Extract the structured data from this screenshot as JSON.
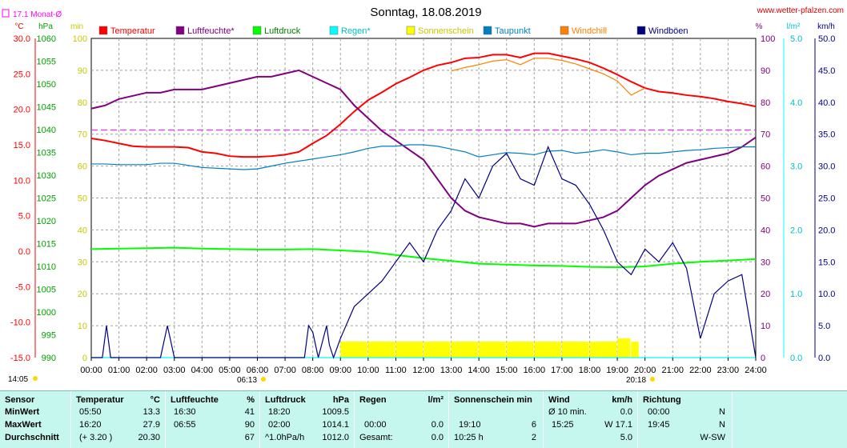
{
  "header": {
    "title": "Sonntag, 18.08.2019",
    "site": "www.wetter-pfalzen.com",
    "monthly_avg_label": "17.1 Monat-Ø"
  },
  "colors": {
    "temperature": "#ff0000",
    "humidity": "#800080",
    "pressure": "#00ff00",
    "rain": "#00ffff",
    "sunshine": "#ffff00",
    "dewpoint": "#0080c0",
    "windchill": "#ff8000",
    "windgust": "#000080",
    "monthly_avg": "#ff00ff"
  },
  "chart_data": {
    "type": "line",
    "x_ticks": [
      "00:00",
      "01:00",
      "02:00",
      "03:00",
      "04:00",
      "05:00",
      "06:00",
      "07:00",
      "08:00",
      "09:00",
      "10:00",
      "11:00",
      "12:00",
      "13:00",
      "14:00",
      "15:00",
      "16:00",
      "17:00",
      "18:00",
      "19:00",
      "20:00",
      "21:00",
      "22:00",
      "23:00",
      "24:00"
    ],
    "x_hours": [
      0,
      24
    ],
    "axes": {
      "temperature": {
        "unit": "°C",
        "range": [
          -15,
          30
        ],
        "ticks": [
          "30.0",
          "25.0",
          "20.0",
          "15.0",
          "10.0",
          "5.0",
          "0.0",
          "-5.0",
          "-10.0",
          "-15.0"
        ]
      },
      "pressure": {
        "unit": "hPa",
        "range": [
          990,
          1060
        ],
        "ticks": [
          "1060",
          "1055",
          "1050",
          "1045",
          "1040",
          "1035",
          "1030",
          "1025",
          "1020",
          "1015",
          "1010",
          "1005",
          "1000",
          "995",
          "990"
        ]
      },
      "sunshine_min": {
        "unit": "min",
        "range": [
          0,
          100
        ],
        "ticks": [
          "100",
          "90",
          "80",
          "70",
          "60",
          "50",
          "40",
          "30",
          "20",
          "10",
          "0"
        ]
      },
      "humidity": {
        "unit": "%",
        "range": [
          0,
          100
        ],
        "ticks": [
          "100",
          "90",
          "80",
          "70",
          "60",
          "50",
          "40",
          "30",
          "20",
          "10",
          "0"
        ]
      },
      "rain": {
        "unit": "l/m²",
        "range": [
          0,
          5
        ],
        "ticks": [
          "5.0",
          "4.0",
          "3.0",
          "2.0",
          "1.0",
          "0.0"
        ]
      },
      "wind": {
        "unit": "km/h",
        "range": [
          0,
          50
        ],
        "ticks": [
          "50.0",
          "45.0",
          "40.0",
          "35.0",
          "30.0",
          "25.0",
          "20.0",
          "15.0",
          "10.0",
          "5.0",
          "0.0"
        ]
      }
    },
    "monthly_avg_temp": 17.1,
    "sunrise": "06:13",
    "sunset": "20:18",
    "left_time": "14:05",
    "grid": true,
    "legend_position": "top",
    "series": [
      {
        "name": "Temperatur",
        "axis": "temperature",
        "color": "#ff0000",
        "x": [
          0,
          0.5,
          1,
          1.5,
          2,
          2.5,
          3,
          3.5,
          4,
          4.5,
          5,
          5.5,
          6,
          6.5,
          7,
          7.5,
          8,
          8.5,
          9,
          9.5,
          10,
          10.5,
          11,
          11.5,
          12,
          12.5,
          13,
          13.5,
          14,
          14.5,
          15,
          15.5,
          16,
          16.5,
          17,
          17.5,
          18,
          18.5,
          19,
          19.5,
          20,
          20.5,
          21,
          21.5,
          22,
          22.5,
          23,
          23.5,
          24
        ],
        "y": [
          15.9,
          15.6,
          15.2,
          14.8,
          14.7,
          14.7,
          14.7,
          14.6,
          14.0,
          13.8,
          13.4,
          13.3,
          13.3,
          13.4,
          13.6,
          14.0,
          15.2,
          16.3,
          17.9,
          19.7,
          21.3,
          22.4,
          23.6,
          24.5,
          25.5,
          26.2,
          26.6,
          27.2,
          27.3,
          27.7,
          27.7,
          27.3,
          27.9,
          27.9,
          27.5,
          27.1,
          26.6,
          25.8,
          24.9,
          23.9,
          23.0,
          22.5,
          22.3,
          22.0,
          21.8,
          21.5,
          21.1,
          20.8,
          20.4
        ]
      },
      {
        "name": "Luftfeuchte*",
        "axis": "humidity",
        "color": "#800080",
        "x": [
          0,
          0.5,
          1,
          1.5,
          2,
          2.5,
          3,
          3.5,
          4,
          4.5,
          5,
          5.5,
          6,
          6.5,
          7,
          7.5,
          8,
          8.5,
          9,
          9.5,
          10,
          10.5,
          11,
          11.5,
          12,
          12.5,
          13,
          13.5,
          14,
          14.5,
          15,
          15.5,
          16,
          16.5,
          17,
          17.5,
          18,
          18.5,
          19,
          19.5,
          20,
          20.5,
          21,
          21.5,
          22,
          22.5,
          23,
          23.5,
          24
        ],
        "y": [
          78,
          79,
          81,
          82,
          83,
          83,
          84,
          84,
          84,
          85,
          86,
          87,
          88,
          88,
          89,
          90,
          88,
          86,
          84,
          79,
          75,
          71,
          68,
          65,
          62,
          56,
          50,
          46,
          44,
          43,
          42,
          42,
          41,
          42,
          42,
          42,
          43,
          44,
          46,
          50,
          54,
          57,
          59,
          61,
          62,
          63,
          64,
          66,
          69
        ]
      },
      {
        "name": "Luftdruck",
        "axis": "pressure",
        "color": "#00ff00",
        "x": [
          0,
          1,
          2,
          3,
          4,
          5,
          6,
          7,
          8,
          9,
          10,
          11,
          12,
          13,
          14,
          15,
          16,
          17,
          18,
          19,
          20,
          21,
          22,
          23,
          24
        ],
        "y": [
          1013.8,
          1013.9,
          1014.0,
          1014.1,
          1013.9,
          1013.8,
          1013.7,
          1013.7,
          1013.8,
          1013.5,
          1013.2,
          1012.5,
          1011.8,
          1011.2,
          1010.6,
          1010.4,
          1010.2,
          1010.1,
          1009.9,
          1009.8,
          1010.0,
          1010.6,
          1011.0,
          1011.3,
          1011.6
        ]
      },
      {
        "name": "Regen*",
        "axis": "rain",
        "color": "#00ffff",
        "x": [
          0,
          24
        ],
        "y": [
          0.0,
          0.0
        ]
      },
      {
        "name": "Sonnenschein",
        "axis": "sunshine_min",
        "color": "#ffff00",
        "x": [
          9.0,
          10.0,
          11.0,
          12.0,
          13.0,
          14.0,
          15.0,
          16.0,
          17.0,
          18.0,
          19.0,
          19.5
        ],
        "y": [
          5,
          5,
          5,
          5,
          5,
          5,
          5,
          5,
          5,
          5,
          6,
          5
        ]
      },
      {
        "name": "Taupunkt",
        "axis": "temperature",
        "color": "#0080c0",
        "x": [
          0,
          0.5,
          1,
          1.5,
          2,
          2.5,
          3,
          3.5,
          4,
          4.5,
          5,
          5.5,
          6,
          6.5,
          7,
          7.5,
          8,
          8.5,
          9,
          9.5,
          10,
          10.5,
          11,
          11.5,
          12,
          12.5,
          13,
          13.5,
          14,
          14.5,
          15,
          15.5,
          16,
          16.5,
          17,
          17.5,
          18,
          18.5,
          19,
          19.5,
          20,
          20.5,
          21,
          21.5,
          22,
          22.5,
          23,
          23.5,
          24
        ],
        "y": [
          12.3,
          12.3,
          12.2,
          12.2,
          12.2,
          12.4,
          12.4,
          12.1,
          11.8,
          11.7,
          11.6,
          11.5,
          11.6,
          12.0,
          12.4,
          12.7,
          13.0,
          13.3,
          13.6,
          14.0,
          14.5,
          14.8,
          14.8,
          15.0,
          15.0,
          14.8,
          14.4,
          14.0,
          13.3,
          13.6,
          13.9,
          13.8,
          13.6,
          14.1,
          14.2,
          13.8,
          14.0,
          14.3,
          14.0,
          13.6,
          13.8,
          13.8,
          14.0,
          14.2,
          14.3,
          14.5,
          14.6,
          14.7,
          14.7
        ]
      },
      {
        "name": "Windchill",
        "axis": "temperature",
        "color": "#ff8000",
        "x": [
          13.0,
          13.5,
          14.0,
          14.5,
          15.0,
          15.5,
          16.0,
          16.5,
          17.0,
          17.5,
          18.0,
          18.5,
          19.0,
          19.5,
          20.0
        ],
        "y": [
          25.4,
          25.9,
          26.3,
          26.8,
          27.0,
          26.3,
          27.2,
          27.2,
          26.9,
          26.4,
          25.7,
          25.0,
          24.0,
          22.0,
          23.0
        ]
      },
      {
        "name": "Windböen",
        "axis": "wind",
        "color": "#000080",
        "x": [
          0,
          0.4,
          0.55,
          0.7,
          1,
          2,
          2.5,
          2.75,
          2.85,
          3,
          4,
          5,
          6,
          7,
          7.7,
          7.85,
          8.0,
          8.2,
          8.5,
          8.6,
          8.75,
          9.0,
          9.5,
          10,
          10.5,
          11,
          11.5,
          12,
          12.5,
          13,
          13.5,
          14,
          14.5,
          15,
          15.5,
          16,
          16.5,
          17,
          17.5,
          18,
          18.5,
          19,
          19.5,
          20,
          20.5,
          21,
          21.5,
          22,
          22.5,
          23,
          23.5,
          24
        ],
        "y": [
          0,
          0,
          5,
          0,
          0,
          0,
          0,
          5,
          3,
          0,
          0,
          0,
          0,
          0,
          0,
          5,
          4,
          0,
          5,
          2,
          0,
          3,
          8,
          10,
          12,
          15,
          18,
          15,
          20,
          23,
          28,
          25,
          30,
          32,
          28,
          27,
          33,
          28,
          27,
          24,
          20,
          15,
          13,
          17,
          15,
          18,
          14,
          3,
          10,
          12,
          13,
          0
        ]
      }
    ]
  },
  "legend": [
    "Temperatur",
    "Luftfeuchte*",
    "Luftdruck",
    "Regen*",
    "Sonnenschein",
    "Taupunkt",
    "Windchill",
    "Windböen"
  ],
  "table": {
    "row_labels": [
      "Sensor",
      "MinWert",
      "MaxWert",
      "Durchschnitt"
    ],
    "temperature": {
      "header": "Temperatur",
      "unit": "°C",
      "rows": [
        [
          "05:50",
          "13.3"
        ],
        [
          "16:20",
          "27.9"
        ],
        [
          "(+ 3.20 )",
          "20.30"
        ]
      ]
    },
    "humidity": {
      "header": "Luftfeuchte",
      "unit": "%",
      "rows": [
        [
          "16:30",
          "41"
        ],
        [
          "06:55",
          "90"
        ],
        [
          "",
          "67"
        ]
      ]
    },
    "pressure": {
      "header": "Luftdruck",
      "unit": "hPa",
      "rows": [
        [
          "18:20",
          "1009.5"
        ],
        [
          "02:00",
          "1014.1"
        ],
        [
          "^1.0hPa/h",
          "1012.0"
        ]
      ]
    },
    "rain": {
      "header": "Regen",
      "unit": "l/m²",
      "rows": [
        [
          "",
          ""
        ],
        [
          "00:00",
          "0.0"
        ],
        [
          "Gesamt:",
          "0.0"
        ]
      ]
    },
    "sunshine": {
      "header": "Sonnenschein min",
      "unit": "",
      "rows": [
        [
          "",
          ""
        ],
        [
          "19:10",
          "6"
        ],
        [
          "10:25 h",
          "2"
        ]
      ]
    },
    "wind": {
      "header": "Wind",
      "unit": "km/h",
      "rows": [
        [
          "Ø 10 min.",
          "0.0"
        ],
        [
          "15:25",
          "W 17.1"
        ],
        [
          "",
          "5.0"
        ]
      ]
    },
    "direction": {
      "header": "Richtung",
      "rows": [
        [
          "00:00",
          "N"
        ],
        [
          "19:45",
          "N"
        ],
        [
          "",
          "W-SW"
        ]
      ]
    }
  }
}
